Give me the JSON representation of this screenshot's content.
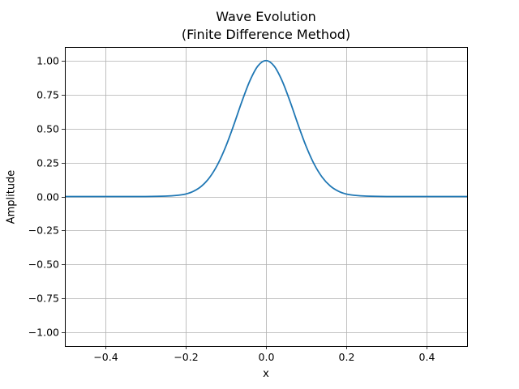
{
  "chart_data": {
    "type": "line",
    "title_lines": [
      "Wave Evolution",
      "(Finite Difference Method)"
    ],
    "xlabel": "x",
    "ylabel": "Amplitude",
    "xlim": [
      -0.5,
      0.5
    ],
    "ylim": [
      -1.1,
      1.1
    ],
    "xticks": [
      -0.4,
      -0.2,
      0.0,
      0.2,
      0.4
    ],
    "xtick_labels": [
      "−0.4",
      "−0.2",
      "0.0",
      "0.2",
      "0.4"
    ],
    "yticks": [
      -1.0,
      -0.75,
      -0.5,
      -0.25,
      0.0,
      0.25,
      0.5,
      0.75,
      1.0
    ],
    "ytick_labels": [
      "−1.00",
      "−0.75",
      "−0.50",
      "−0.25",
      "0.00",
      "0.25",
      "0.50",
      "0.75",
      "1.00"
    ],
    "grid": true,
    "series": [
      {
        "color": "#1f77b4",
        "x": [
          -0.5,
          -0.45,
          -0.4,
          -0.35,
          -0.3,
          -0.25,
          -0.22,
          -0.2,
          -0.18,
          -0.16,
          -0.14,
          -0.12,
          -0.1,
          -0.08,
          -0.06,
          -0.04,
          -0.02,
          0.0,
          0.02,
          0.04,
          0.06,
          0.08,
          0.1,
          0.12,
          0.14,
          0.16,
          0.18,
          0.2,
          0.22,
          0.25,
          0.3,
          0.35,
          0.4,
          0.45,
          0.5
        ],
        "y": [
          0.0,
          0.0,
          0.0,
          0.0,
          0.0,
          0.003,
          0.009,
          0.018,
          0.039,
          0.077,
          0.141,
          0.237,
          0.368,
          0.527,
          0.698,
          0.852,
          0.961,
          1.0,
          0.961,
          0.852,
          0.698,
          0.527,
          0.368,
          0.237,
          0.141,
          0.077,
          0.039,
          0.018,
          0.009,
          0.003,
          0.0,
          0.0,
          0.0,
          0.0,
          0.0
        ]
      }
    ]
  },
  "colors": {
    "grid": "#b0b0b0",
    "axes": "#000000",
    "line": "#1f77b4"
  }
}
